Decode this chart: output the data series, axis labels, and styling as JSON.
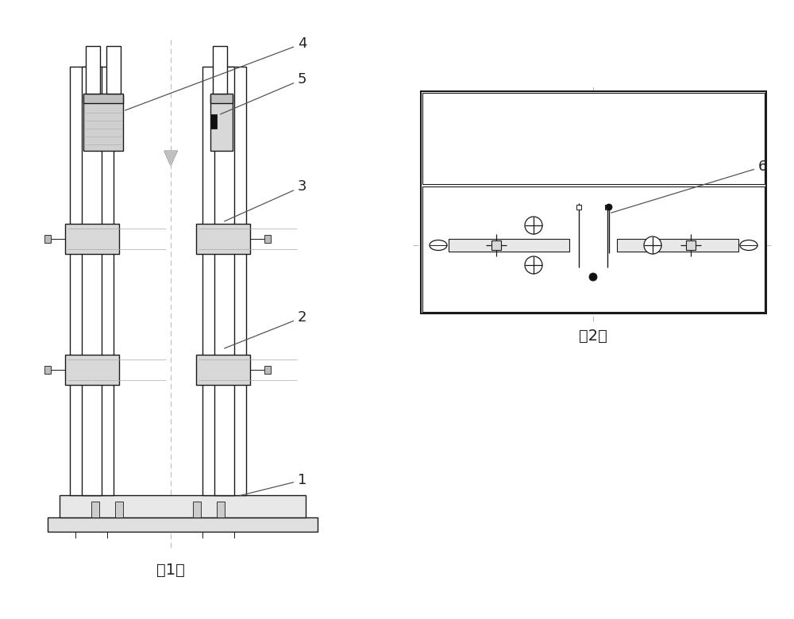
{
  "bg_color": "#ffffff",
  "line_color": "#1a1a1a",
  "fig1_label": "（1）",
  "fig2_label": "（2）",
  "lw_main": 1.0,
  "lw_thick": 1.5,
  "lw_thin": 0.7
}
